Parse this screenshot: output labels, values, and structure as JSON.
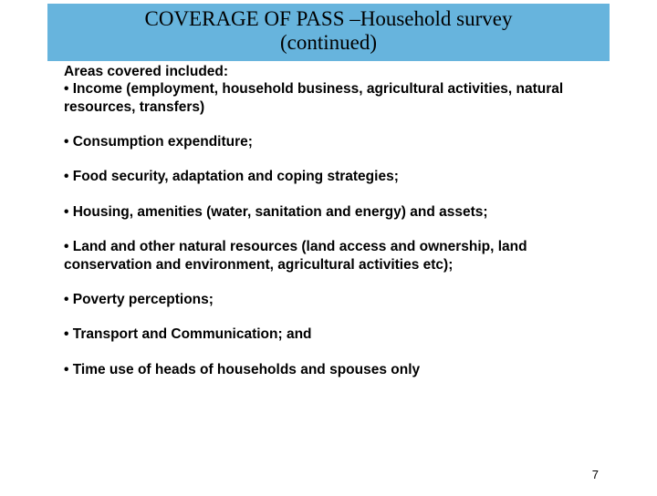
{
  "title": {
    "line1": "COVERAGE OF PASS –Household survey",
    "line2": "(continued)"
  },
  "heading": "Areas covered included:",
  "bullets": [
    "• Income (employment, household business, agricultural activities, natural resources, transfers)",
    "• Consumption expenditure;",
    "• Food security, adaptation and coping strategies;",
    "• Housing, amenities (water, sanitation and energy) and assets;",
    "• Land and other natural resources (land access and ownership, land conservation and environment, agricultural activities etc);",
    "• Poverty perceptions;",
    "• Transport and Communication; and",
    "• Time use of heads of households and spouses only"
  ],
  "page_number": "7",
  "colors": {
    "title_bg": "#67b4dd",
    "text": "#000000",
    "page_bg": "#ffffff"
  }
}
